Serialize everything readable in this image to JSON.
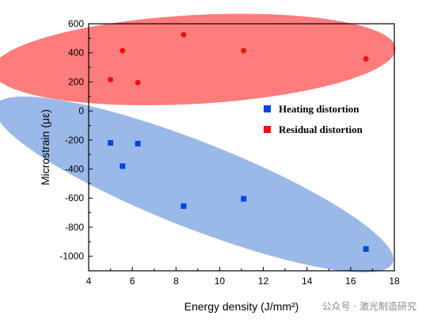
{
  "chart_data": {
    "type": "scatter",
    "xlabel": "Energy density (J/mm²)",
    "ylabel": "Microstrain (με)",
    "xlim": [
      4,
      18
    ],
    "ylim": [
      -1100,
      600
    ],
    "x_ticks": [
      4,
      6,
      8,
      10,
      12,
      14,
      16,
      18
    ],
    "y_ticks": [
      600,
      400,
      200,
      0,
      -200,
      -400,
      -600,
      -800,
      -1000
    ],
    "legend_position": "right, middle",
    "series": [
      {
        "name": "Heating distortion",
        "color": "#0047e0",
        "marker": "square",
        "x": [
          5.0,
          5.55,
          6.25,
          8.35,
          11.1,
          16.7
        ],
        "y": [
          -220,
          -380,
          -225,
          -655,
          -605,
          -950
        ]
      },
      {
        "name": "Residual distortion",
        "color": "#ee1111",
        "marker": "circle",
        "x": [
          5.0,
          5.55,
          6.25,
          8.35,
          11.1,
          16.7
        ],
        "y": [
          215,
          415,
          195,
          525,
          415,
          358
        ]
      }
    ],
    "ellipses": [
      {
        "series": "Heating distortion",
        "color": "#6f9be0",
        "opacity": 0.7
      },
      {
        "series": "Residual distortion",
        "color": "#ff5b5b",
        "opacity": 0.8
      }
    ]
  },
  "watermark": "公众号 · 激光制造研究"
}
